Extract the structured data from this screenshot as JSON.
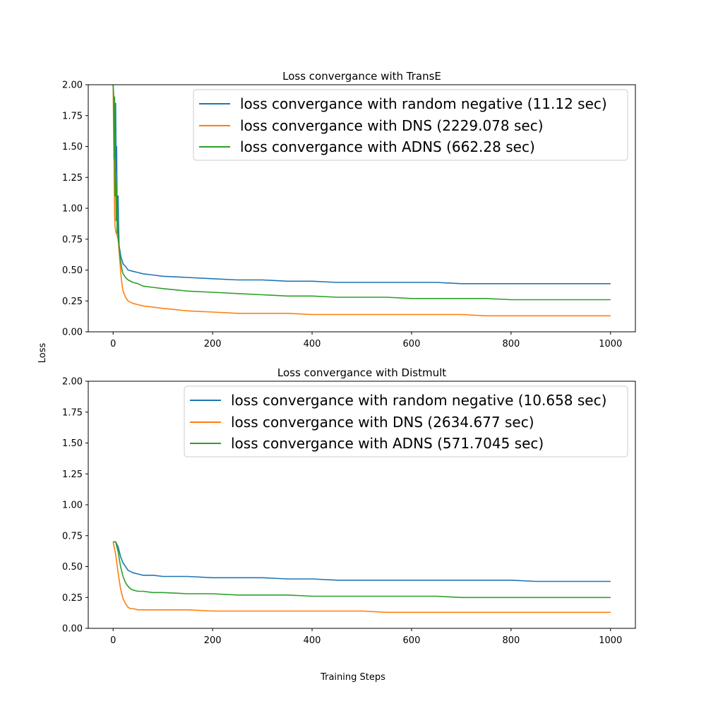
{
  "figure": {
    "ylabel": "Loss",
    "xlabel": "Training Steps"
  },
  "colors": {
    "random": "#1f77b4",
    "dns": "#ff7f0e",
    "adns": "#2ca02c"
  },
  "chart_data": [
    {
      "type": "line",
      "title": "Loss convergance with TransE",
      "xlabel": "",
      "ylabel": "",
      "xlim": [
        -50,
        1050
      ],
      "ylim": [
        0,
        2.0
      ],
      "xticks": [
        0,
        200,
        400,
        600,
        800,
        1000
      ],
      "yticks": [
        0.0,
        0.25,
        0.5,
        0.75,
        1.0,
        1.25,
        1.5,
        1.75,
        2.0
      ],
      "xtick_labels": [
        "0",
        "200",
        "400",
        "600",
        "800",
        "1000"
      ],
      "ytick_labels": [
        "0.00",
        "0.25",
        "0.50",
        "0.75",
        "1.00",
        "1.25",
        "1.50",
        "1.75",
        "2.00"
      ],
      "grid": false,
      "legend": "top-right",
      "series": [
        {
          "name": "loss convergance with random negative (11.12 sec)",
          "color": "#1f77b4",
          "x": [
            0,
            2,
            4,
            5,
            6,
            7,
            8,
            9,
            10,
            11,
            12,
            14,
            16,
            18,
            20,
            25,
            30,
            40,
            50,
            60,
            80,
            100,
            150,
            200,
            250,
            300,
            350,
            400,
            450,
            500,
            550,
            600,
            650,
            700,
            750,
            800,
            850,
            900,
            950,
            1000
          ],
          "y": [
            2.0,
            1.85,
            1.6,
            1.85,
            1.3,
            1.5,
            1.0,
            0.9,
            1.1,
            0.85,
            0.7,
            0.65,
            0.6,
            0.58,
            0.55,
            0.53,
            0.5,
            0.49,
            0.48,
            0.47,
            0.46,
            0.45,
            0.44,
            0.43,
            0.42,
            0.42,
            0.41,
            0.41,
            0.4,
            0.4,
            0.4,
            0.4,
            0.4,
            0.39,
            0.39,
            0.39,
            0.39,
            0.39,
            0.39,
            0.39
          ]
        },
        {
          "name": "loss convergance with DNS (2229.078 sec)",
          "color": "#ff7f0e",
          "x": [
            0,
            2,
            3,
            4,
            5,
            6,
            8,
            10,
            12,
            14,
            16,
            18,
            20,
            25,
            30,
            40,
            50,
            60,
            80,
            100,
            150,
            200,
            250,
            300,
            350,
            400,
            450,
            500,
            550,
            600,
            650,
            700,
            750,
            800,
            850,
            900,
            950,
            1000
          ],
          "y": [
            2.0,
            1.3,
            0.95,
            0.85,
            0.82,
            0.8,
            0.78,
            0.75,
            0.65,
            0.55,
            0.45,
            0.38,
            0.33,
            0.28,
            0.25,
            0.23,
            0.22,
            0.21,
            0.2,
            0.19,
            0.17,
            0.16,
            0.15,
            0.15,
            0.15,
            0.14,
            0.14,
            0.14,
            0.14,
            0.14,
            0.14,
            0.14,
            0.13,
            0.13,
            0.13,
            0.13,
            0.13,
            0.13
          ]
        },
        {
          "name": "loss convergance with ADNS (662.28 sec)",
          "color": "#2ca02c",
          "x": [
            0,
            1,
            2,
            3,
            4,
            5,
            6,
            7,
            8,
            9,
            10,
            12,
            14,
            16,
            18,
            20,
            25,
            30,
            40,
            50,
            60,
            80,
            100,
            150,
            200,
            250,
            300,
            350,
            400,
            450,
            500,
            550,
            600,
            650,
            700,
            750,
            800,
            850,
            900,
            950,
            1000
          ],
          "y": [
            2.0,
            1.9,
            1.4,
            1.9,
            1.1,
            1.3,
            0.9,
            1.2,
            0.8,
            0.95,
            0.75,
            0.7,
            0.6,
            0.55,
            0.5,
            0.47,
            0.44,
            0.42,
            0.4,
            0.39,
            0.37,
            0.36,
            0.35,
            0.33,
            0.32,
            0.31,
            0.3,
            0.29,
            0.29,
            0.28,
            0.28,
            0.28,
            0.27,
            0.27,
            0.27,
            0.27,
            0.26,
            0.26,
            0.26,
            0.26,
            0.26
          ]
        }
      ]
    },
    {
      "type": "line",
      "title": "Loss convergance with Distmult",
      "xlabel": "",
      "ylabel": "",
      "xlim": [
        -50,
        1050
      ],
      "ylim": [
        0,
        2.0
      ],
      "xticks": [
        0,
        200,
        400,
        600,
        800,
        1000
      ],
      "yticks": [
        0.0,
        0.25,
        0.5,
        0.75,
        1.0,
        1.25,
        1.5,
        1.75,
        2.0
      ],
      "xtick_labels": [
        "0",
        "200",
        "400",
        "600",
        "800",
        "1000"
      ],
      "ytick_labels": [
        "0.00",
        "0.25",
        "0.50",
        "0.75",
        "1.00",
        "1.25",
        "1.50",
        "1.75",
        "2.00"
      ],
      "grid": false,
      "legend": "top-right",
      "series": [
        {
          "name": "loss convergance with random negative (10.658 sec)",
          "color": "#1f77b4",
          "x": [
            0,
            5,
            10,
            15,
            20,
            25,
            30,
            40,
            50,
            60,
            80,
            100,
            150,
            200,
            250,
            300,
            350,
            400,
            450,
            500,
            550,
            600,
            650,
            700,
            750,
            800,
            850,
            900,
            950,
            1000
          ],
          "y": [
            0.7,
            0.7,
            0.66,
            0.58,
            0.53,
            0.5,
            0.47,
            0.45,
            0.44,
            0.43,
            0.43,
            0.42,
            0.42,
            0.41,
            0.41,
            0.41,
            0.4,
            0.4,
            0.39,
            0.39,
            0.39,
            0.39,
            0.39,
            0.39,
            0.39,
            0.39,
            0.38,
            0.38,
            0.38,
            0.38
          ]
        },
        {
          "name": "loss convergance with DNS (2634.677 sec)",
          "color": "#ff7f0e",
          "x": [
            0,
            5,
            10,
            15,
            20,
            25,
            30,
            35,
            40,
            50,
            60,
            80,
            100,
            150,
            200,
            250,
            300,
            350,
            400,
            450,
            500,
            550,
            600,
            650,
            700,
            750,
            800,
            850,
            900,
            950,
            1000
          ],
          "y": [
            0.7,
            0.6,
            0.45,
            0.32,
            0.24,
            0.2,
            0.17,
            0.16,
            0.16,
            0.15,
            0.15,
            0.15,
            0.15,
            0.15,
            0.14,
            0.14,
            0.14,
            0.14,
            0.14,
            0.14,
            0.14,
            0.13,
            0.13,
            0.13,
            0.13,
            0.13,
            0.13,
            0.13,
            0.13,
            0.13,
            0.13
          ]
        },
        {
          "name": "loss convergance with ADNS (571.7045 sec)",
          "color": "#2ca02c",
          "x": [
            0,
            5,
            10,
            15,
            20,
            25,
            30,
            35,
            40,
            50,
            60,
            80,
            100,
            150,
            200,
            250,
            300,
            350,
            400,
            450,
            500,
            550,
            600,
            650,
            700,
            750,
            800,
            850,
            900,
            950,
            1000
          ],
          "y": [
            0.7,
            0.7,
            0.62,
            0.5,
            0.42,
            0.37,
            0.34,
            0.32,
            0.31,
            0.3,
            0.3,
            0.29,
            0.29,
            0.28,
            0.28,
            0.27,
            0.27,
            0.27,
            0.26,
            0.26,
            0.26,
            0.26,
            0.26,
            0.26,
            0.25,
            0.25,
            0.25,
            0.25,
            0.25,
            0.25,
            0.25
          ]
        }
      ]
    }
  ]
}
